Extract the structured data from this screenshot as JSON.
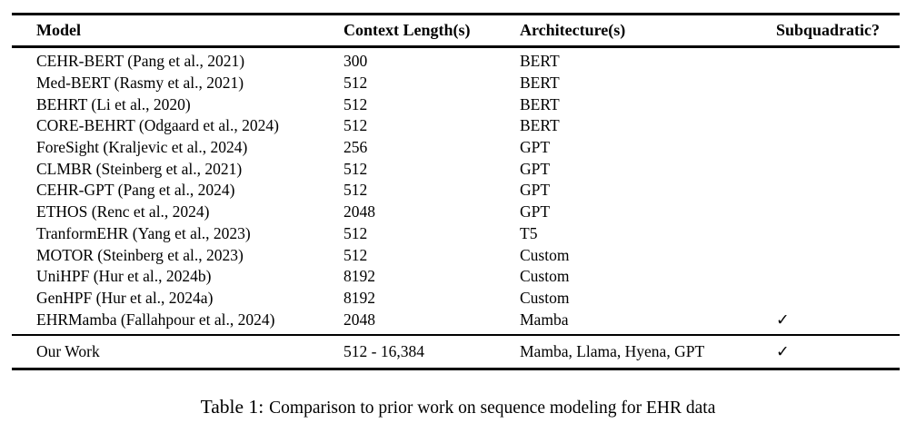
{
  "colors": {
    "background": "#ffffff",
    "text": "#000000",
    "rule": "#000000"
  },
  "table": {
    "columns": [
      "Model",
      "Context Length(s)",
      "Architecture(s)",
      "Subquadratic?"
    ],
    "rows": [
      {
        "model": "CEHR-BERT (Pang et al., 2021)",
        "context": "300",
        "arch": "BERT",
        "subq": ""
      },
      {
        "model": "Med-BERT (Rasmy et al., 2021)",
        "context": "512",
        "arch": "BERT",
        "subq": ""
      },
      {
        "model": "BEHRT (Li et al., 2020)",
        "context": "512",
        "arch": "BERT",
        "subq": ""
      },
      {
        "model": "CORE-BEHRT (Odgaard et al., 2024)",
        "context": "512",
        "arch": "BERT",
        "subq": ""
      },
      {
        "model": "ForeSight (Kraljevic et al., 2024)",
        "context": "256",
        "arch": "GPT",
        "subq": ""
      },
      {
        "model": "CLMBR (Steinberg et al., 2021)",
        "context": "512",
        "arch": "GPT",
        "subq": ""
      },
      {
        "model": "CEHR-GPT (Pang et al., 2024)",
        "context": "512",
        "arch": "GPT",
        "subq": ""
      },
      {
        "model": "ETHOS (Renc et al., 2024)",
        "context": "2048",
        "arch": "GPT",
        "subq": ""
      },
      {
        "model": "TranformEHR (Yang et al., 2023)",
        "context": "512",
        "arch": "T5",
        "subq": ""
      },
      {
        "model": "MOTOR (Steinberg et al., 2023)",
        "context": "512",
        "arch": "Custom",
        "subq": ""
      },
      {
        "model": "UniHPF (Hur et al., 2024b)",
        "context": "8192",
        "arch": "Custom",
        "subq": ""
      },
      {
        "model": "GenHPF (Hur et al., 2024a)",
        "context": "8192",
        "arch": "Custom",
        "subq": ""
      },
      {
        "model": "EHRMamba (Fallahpour et al., 2024)",
        "context": "2048",
        "arch": "Mamba",
        "subq": "✓"
      }
    ],
    "summary_row": {
      "model": "Our Work",
      "context": "512 - 16,384",
      "arch": "Mamba, Llama, Hyena, GPT",
      "subq": "✓"
    }
  },
  "caption": {
    "label": "Table 1:",
    "text": "Comparison to prior work on sequence modeling for EHR data"
  }
}
